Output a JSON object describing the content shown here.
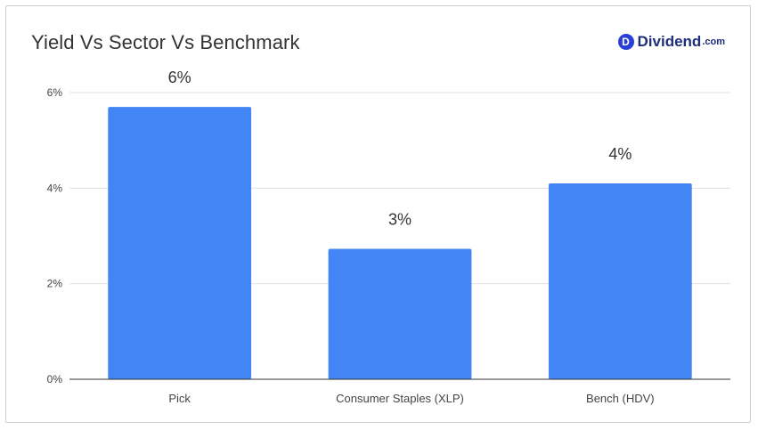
{
  "header": {
    "title": "Yield Vs Sector Vs Benchmark",
    "brand_mark": "D",
    "brand_name": "Dividend",
    "brand_tld": ".com"
  },
  "colors": {
    "bar": "#4285f4",
    "grid": "#e0e0e0",
    "axis": "#333333"
  },
  "chart_data": {
    "type": "bar",
    "title": "Yield Vs Sector Vs Benchmark",
    "xlabel": "",
    "ylabel": "",
    "categories": [
      "Pick",
      "Consumer Staples (XLP)",
      "Bench (HDV)"
    ],
    "values": [
      5.7,
      2.73,
      4.1
    ],
    "data_labels": [
      "6%",
      "3%",
      "4%"
    ],
    "ylim": [
      0,
      6
    ],
    "yticks": [
      0,
      2,
      4,
      6
    ],
    "ytick_labels": [
      "0%",
      "2%",
      "4%",
      "6%"
    ],
    "grid": true,
    "legend": "none"
  }
}
